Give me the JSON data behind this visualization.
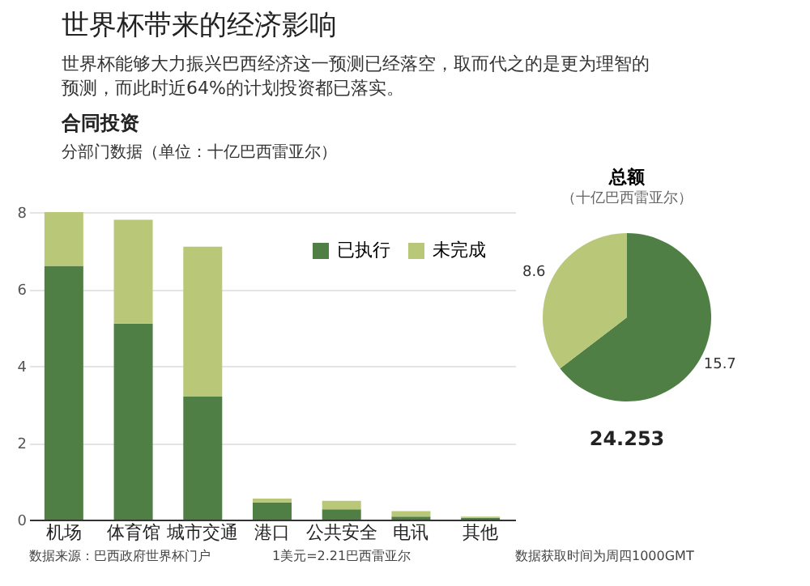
{
  "chart_data": [
    {
      "type": "bar",
      "title": "世界杯带来的经济影响",
      "subtitle": "世界杯能够大力振兴巴西经济这一预测已经落空，取而代之的是更为理智的预测，而此时近64%的计划投资都已落实。",
      "ylabel": "分部门数据（单位：十亿巴西雷亚尔）",
      "annotations": [
        "合同投资",
        "数据来源：巴西政府世界杯门户",
        "1美元=2.21巴西雷亚尔",
        "数据获取时间为周四1000GMT"
      ],
      "categories": [
        "机场",
        "体育馆",
        "城市交通",
        "港口",
        "公共安全",
        "电讯",
        "其他"
      ],
      "stacked": true,
      "ylim": [
        0,
        8
      ],
      "yticks": [
        0,
        2,
        4,
        6,
        8
      ],
      "grid": "y",
      "legend": "top right",
      "series": [
        {
          "name": "已执行",
          "color": "#4f7f45",
          "values": [
            6.6,
            5.1,
            3.2,
            0.45,
            0.27,
            0.08,
            0.05
          ]
        },
        {
          "name": "未完成",
          "color": "#b9c878",
          "values": [
            1.4,
            2.7,
            3.9,
            0.1,
            0.22,
            0.14,
            0.03
          ]
        }
      ]
    },
    {
      "type": "pie",
      "title": "总额",
      "subtitle": "（十亿巴西雷亚尔）",
      "categories": [
        null,
        null
      ],
      "values": [
        15.7,
        8.6
      ],
      "colors": [
        "#4f7f45",
        "#b9c878"
      ],
      "data_labels": true,
      "annotations": [
        "24.253"
      ]
    }
  ]
}
